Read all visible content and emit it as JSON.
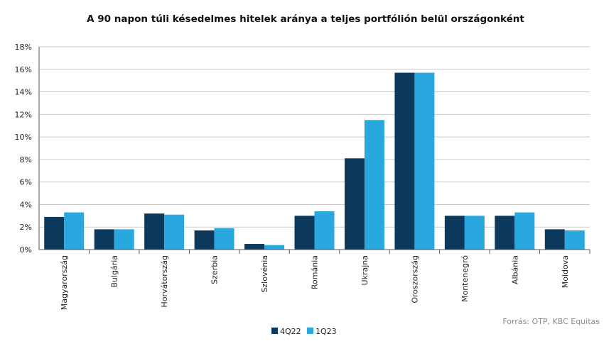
{
  "chart_data": {
    "type": "bar",
    "title": "A 90 napon túli késedelmes hitelek aránya a teljes portfólión belül országonként",
    "xlabel": "",
    "ylabel": "",
    "categories": [
      "Magyarország",
      "Bulgária",
      "Horvátország",
      "Szerbia",
      "Szlovénia",
      "Románia",
      "Ukrajna",
      "Oroszország",
      "Montenegró",
      "Albánia",
      "Moldova"
    ],
    "series": [
      {
        "name": "4Q22",
        "color": "#0d3a5c",
        "values": [
          2.9,
          1.8,
          3.2,
          1.7,
          0.5,
          3.0,
          8.1,
          15.7,
          3.0,
          3.0,
          1.8
        ]
      },
      {
        "name": "1Q23",
        "color": "#29a8e0",
        "values": [
          3.3,
          1.8,
          3.1,
          1.9,
          0.4,
          3.4,
          11.5,
          15.7,
          3.0,
          3.3,
          1.7
        ]
      }
    ],
    "ylim": [
      0,
      18
    ],
    "yticks": [
      "0%",
      "2%",
      "4%",
      "6%",
      "8%",
      "10%",
      "12%",
      "14%",
      "16%",
      "18%"
    ],
    "ytick_values": [
      0,
      2,
      4,
      6,
      8,
      10,
      12,
      14,
      16,
      18
    ],
    "grid": true,
    "legend": "bottom-center",
    "source_note": "Forrás: OTP, KBC Equitas"
  }
}
